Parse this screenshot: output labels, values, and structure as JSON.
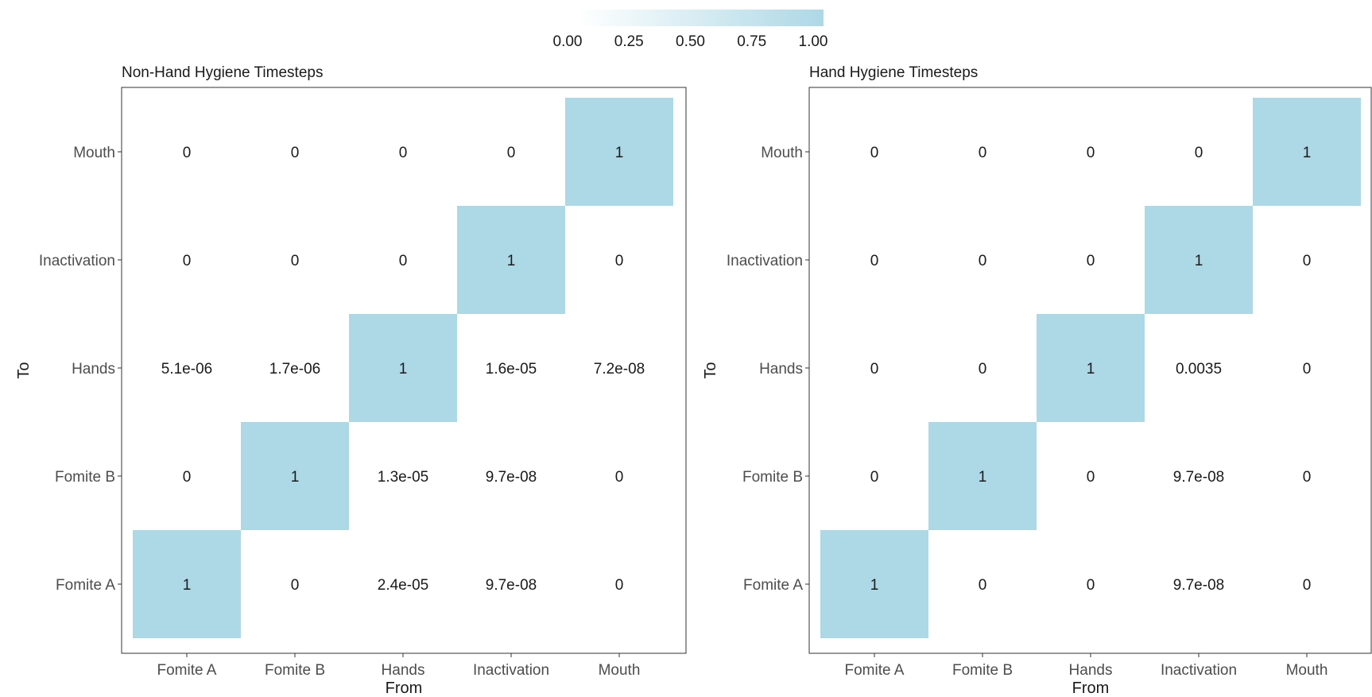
{
  "chart_data": [
    {
      "type": "heatmap",
      "title": "Non-Hand Hygiene Timesteps",
      "xlabel": "From",
      "ylabel": "To",
      "x_categories": [
        "Fomite A",
        "Fomite B",
        "Hands",
        "Inactivation",
        "Mouth"
      ],
      "y_categories": [
        "Fomite A",
        "Fomite B",
        "Hands",
        "Inactivation",
        "Mouth"
      ],
      "cells": [
        {
          "from": "Fomite A",
          "to": "Fomite A",
          "value": 1,
          "label": "1"
        },
        {
          "from": "Fomite B",
          "to": "Fomite A",
          "value": 0,
          "label": "0"
        },
        {
          "from": "Hands",
          "to": "Fomite A",
          "value": 2.4e-05,
          "label": "2.4e-05"
        },
        {
          "from": "Inactivation",
          "to": "Fomite A",
          "value": 9.7e-08,
          "label": "9.7e-08"
        },
        {
          "from": "Mouth",
          "to": "Fomite A",
          "value": 0,
          "label": "0"
        },
        {
          "from": "Fomite A",
          "to": "Fomite B",
          "value": 0,
          "label": "0"
        },
        {
          "from": "Fomite B",
          "to": "Fomite B",
          "value": 1,
          "label": "1"
        },
        {
          "from": "Hands",
          "to": "Fomite B",
          "value": 1.3e-05,
          "label": "1.3e-05"
        },
        {
          "from": "Inactivation",
          "to": "Fomite B",
          "value": 9.7e-08,
          "label": "9.7e-08"
        },
        {
          "from": "Mouth",
          "to": "Fomite B",
          "value": 0,
          "label": "0"
        },
        {
          "from": "Fomite A",
          "to": "Hands",
          "value": 5.1e-06,
          "label": "5.1e-06"
        },
        {
          "from": "Fomite B",
          "to": "Hands",
          "value": 1.7e-06,
          "label": "1.7e-06"
        },
        {
          "from": "Hands",
          "to": "Hands",
          "value": 1,
          "label": "1"
        },
        {
          "from": "Inactivation",
          "to": "Hands",
          "value": 1.6e-05,
          "label": "1.6e-05"
        },
        {
          "from": "Mouth",
          "to": "Hands",
          "value": 7.2e-08,
          "label": "7.2e-08"
        },
        {
          "from": "Fomite A",
          "to": "Inactivation",
          "value": 0,
          "label": "0"
        },
        {
          "from": "Fomite B",
          "to": "Inactivation",
          "value": 0,
          "label": "0"
        },
        {
          "from": "Hands",
          "to": "Inactivation",
          "value": 0,
          "label": "0"
        },
        {
          "from": "Inactivation",
          "to": "Inactivation",
          "value": 1,
          "label": "1"
        },
        {
          "from": "Mouth",
          "to": "Inactivation",
          "value": 0,
          "label": "0"
        },
        {
          "from": "Fomite A",
          "to": "Mouth",
          "value": 0,
          "label": "0"
        },
        {
          "from": "Fomite B",
          "to": "Mouth",
          "value": 0,
          "label": "0"
        },
        {
          "from": "Hands",
          "to": "Mouth",
          "value": 0,
          "label": "0"
        },
        {
          "from": "Inactivation",
          "to": "Mouth",
          "value": 0,
          "label": "0"
        },
        {
          "from": "Mouth",
          "to": "Mouth",
          "value": 1,
          "label": "1"
        }
      ]
    },
    {
      "type": "heatmap",
      "title": "Hand Hygiene Timesteps",
      "xlabel": "From",
      "ylabel": "To",
      "x_categories": [
        "Fomite A",
        "Fomite B",
        "Hands",
        "Inactivation",
        "Mouth"
      ],
      "y_categories": [
        "Fomite A",
        "Fomite B",
        "Hands",
        "Inactivation",
        "Mouth"
      ],
      "cells": [
        {
          "from": "Fomite A",
          "to": "Fomite A",
          "value": 1,
          "label": "1"
        },
        {
          "from": "Fomite B",
          "to": "Fomite A",
          "value": 0,
          "label": "0"
        },
        {
          "from": "Hands",
          "to": "Fomite A",
          "value": 0,
          "label": "0"
        },
        {
          "from": "Inactivation",
          "to": "Fomite A",
          "value": 9.7e-08,
          "label": "9.7e-08"
        },
        {
          "from": "Mouth",
          "to": "Fomite A",
          "value": 0,
          "label": "0"
        },
        {
          "from": "Fomite A",
          "to": "Fomite B",
          "value": 0,
          "label": "0"
        },
        {
          "from": "Fomite B",
          "to": "Fomite B",
          "value": 1,
          "label": "1"
        },
        {
          "from": "Hands",
          "to": "Fomite B",
          "value": 0,
          "label": "0"
        },
        {
          "from": "Inactivation",
          "to": "Fomite B",
          "value": 9.7e-08,
          "label": "9.7e-08"
        },
        {
          "from": "Mouth",
          "to": "Fomite B",
          "value": 0,
          "label": "0"
        },
        {
          "from": "Fomite A",
          "to": "Hands",
          "value": 0,
          "label": "0"
        },
        {
          "from": "Fomite B",
          "to": "Hands",
          "value": 0,
          "label": "0"
        },
        {
          "from": "Hands",
          "to": "Hands",
          "value": 1,
          "label": "1"
        },
        {
          "from": "Inactivation",
          "to": "Hands",
          "value": 0.0035,
          "label": "0.0035"
        },
        {
          "from": "Mouth",
          "to": "Hands",
          "value": 0,
          "label": "0"
        },
        {
          "from": "Fomite A",
          "to": "Inactivation",
          "value": 0,
          "label": "0"
        },
        {
          "from": "Fomite B",
          "to": "Inactivation",
          "value": 0,
          "label": "0"
        },
        {
          "from": "Hands",
          "to": "Inactivation",
          "value": 0,
          "label": "0"
        },
        {
          "from": "Inactivation",
          "to": "Inactivation",
          "value": 1,
          "label": "1"
        },
        {
          "from": "Mouth",
          "to": "Inactivation",
          "value": 0,
          "label": "0"
        },
        {
          "from": "Fomite A",
          "to": "Mouth",
          "value": 0,
          "label": "0"
        },
        {
          "from": "Fomite B",
          "to": "Mouth",
          "value": 0,
          "label": "0"
        },
        {
          "from": "Hands",
          "to": "Mouth",
          "value": 0,
          "label": "0"
        },
        {
          "from": "Inactivation",
          "to": "Mouth",
          "value": 0,
          "label": "0"
        },
        {
          "from": "Mouth",
          "to": "Mouth",
          "value": 1,
          "label": "1"
        }
      ]
    }
  ],
  "legend": {
    "position": "top",
    "range": [
      0,
      1
    ],
    "ticks": [
      "0.00",
      "0.25",
      "0.50",
      "0.75",
      "1.00"
    ],
    "color_low": "#ffffff",
    "color_high": "#add8e6"
  },
  "colors": {
    "fill_high": "#add8e6",
    "fill_low": "#ffffff",
    "panel_border": "#333333",
    "tick_text": "#4d4d4d"
  }
}
